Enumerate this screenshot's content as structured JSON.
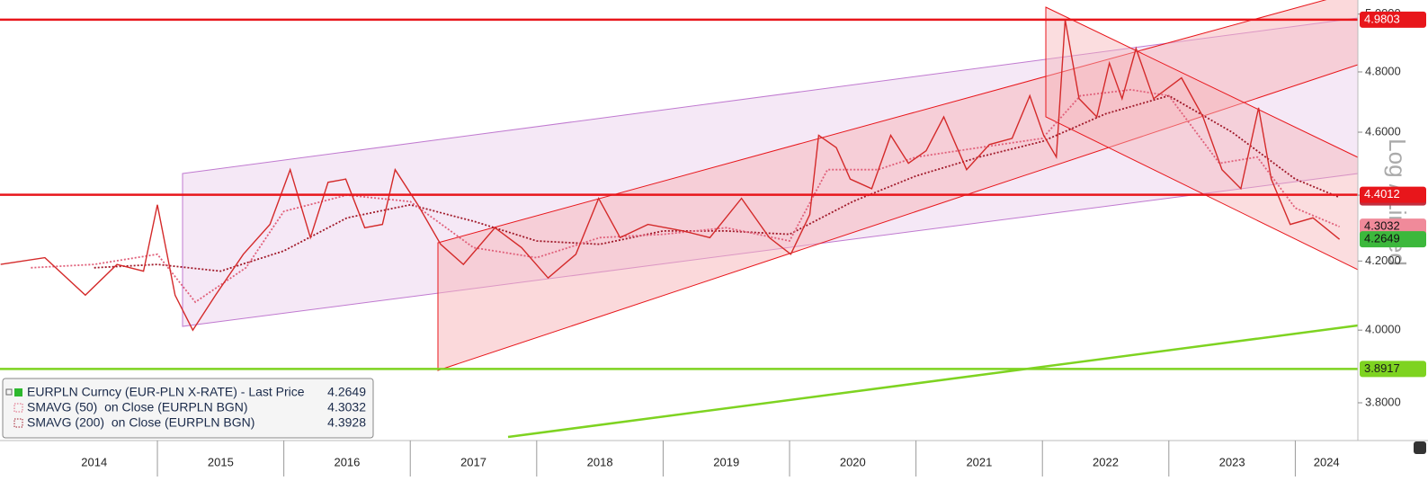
{
  "chart_data": {
    "type": "line",
    "log_scale": true,
    "y_label": "Log / Linked",
    "xlim": [
      2013.755,
      2024.495
    ],
    "ylim": [
      3.7,
      5.05
    ],
    "xticks": [
      2015,
      2016,
      2017,
      2018,
      2019,
      2020,
      2021,
      2022,
      2023,
      2024
    ],
    "year_labels": [
      "2014",
      "2015",
      "2016",
      "2017",
      "2018",
      "2019",
      "2020",
      "2021",
      "2022",
      "2023",
      "2024"
    ],
    "yticks": [
      {
        "value": 3.8,
        "label": "3.8000"
      },
      {
        "value": 4.0,
        "label": "4.0000"
      },
      {
        "value": 4.2,
        "label": "4.2000"
      },
      {
        "value": 4.4,
        "label": "4.4000"
      },
      {
        "value": 4.6,
        "label": "4.6000"
      },
      {
        "value": 4.8,
        "label": "4.8000"
      },
      {
        "value": 5.0,
        "label": "5.0000"
      }
    ],
    "series": [
      {
        "name": "EURPLN Curncy (EUR-PLN X-RATE) - Last Price",
        "color": "#d42a2a",
        "legend_color": "#2db82d",
        "label_color": "#3cb83c",
        "x": [
          2013.76,
          2014.11,
          2014.43,
          2014.68,
          2014.89,
          2015.0,
          2015.14,
          2015.28,
          2015.46,
          2015.68,
          2015.89,
          2016.05,
          2016.21,
          2016.35,
          2016.49,
          2016.64,
          2016.78,
          2016.88,
          2017.06,
          2017.24,
          2017.42,
          2017.67,
          2017.88,
          2018.09,
          2018.31,
          2018.49,
          2018.66,
          2018.88,
          2019.16,
          2019.37,
          2019.62,
          2019.84,
          2020.01,
          2020.16,
          2020.23,
          2020.37,
          2020.48,
          2020.65,
          2020.8,
          2020.94,
          2021.08,
          2021.22,
          2021.4,
          2021.58,
          2021.76,
          2021.9,
          2022.01,
          2022.11,
          2022.18,
          2022.29,
          2022.43,
          2022.53,
          2022.63,
          2022.74,
          2022.88,
          2023.1,
          2023.27,
          2023.42,
          2023.57,
          2023.71,
          2023.81,
          2023.96,
          2024.14,
          2024.35
        ],
        "values": [
          4.19,
          4.21,
          4.1,
          4.19,
          4.17,
          4.37,
          4.1,
          4.0,
          4.1,
          4.22,
          4.31,
          4.48,
          4.27,
          4.44,
          4.45,
          4.3,
          4.31,
          4.48,
          4.37,
          4.25,
          4.19,
          4.3,
          4.24,
          4.15,
          4.22,
          4.39,
          4.27,
          4.31,
          4.29,
          4.27,
          4.39,
          4.27,
          4.22,
          4.34,
          4.59,
          4.55,
          4.45,
          4.42,
          4.59,
          4.5,
          4.54,
          4.65,
          4.48,
          4.56,
          4.58,
          4.72,
          4.59,
          4.52,
          4.98,
          4.71,
          4.65,
          4.83,
          4.71,
          4.88,
          4.71,
          4.78,
          4.65,
          4.48,
          4.42,
          4.68,
          4.45,
          4.31,
          4.33,
          4.2649
        ]
      },
      {
        "name": "SMAVG (50)  on Close (EURPLN BGN)",
        "color": "#e0607a",
        "label_color": "#f08a9a",
        "x": [
          2014.0,
          2014.5,
          2015.0,
          2015.3,
          2015.7,
          2016.0,
          2016.5,
          2017.0,
          2017.5,
          2018.0,
          2018.5,
          2019.0,
          2019.5,
          2020.0,
          2020.3,
          2020.7,
          2021.0,
          2021.5,
          2022.0,
          2022.3,
          2022.7,
          2023.0,
          2023.4,
          2023.7,
          2024.0,
          2024.35
        ],
        "values": [
          4.18,
          4.19,
          4.22,
          4.08,
          4.18,
          4.35,
          4.4,
          4.38,
          4.24,
          4.21,
          4.27,
          4.28,
          4.3,
          4.26,
          4.48,
          4.48,
          4.52,
          4.55,
          4.58,
          4.72,
          4.74,
          4.72,
          4.5,
          4.52,
          4.36,
          4.3032
        ]
      },
      {
        "name": "SMAVG (200)  on Close (EURPLN BGN)",
        "color": "#a01828",
        "label_color": "#c03040",
        "x": [
          2014.5,
          2015.0,
          2015.5,
          2016.0,
          2016.5,
          2017.0,
          2017.5,
          2018.0,
          2018.5,
          2019.0,
          2019.5,
          2020.0,
          2020.5,
          2021.0,
          2021.5,
          2022.0,
          2022.5,
          2023.0,
          2023.5,
          2024.0,
          2024.35
        ],
        "values": [
          4.18,
          4.19,
          4.17,
          4.23,
          4.33,
          4.37,
          4.32,
          4.26,
          4.25,
          4.29,
          4.29,
          4.28,
          4.38,
          4.46,
          4.52,
          4.57,
          4.66,
          4.72,
          4.6,
          4.45,
          4.3928
        ]
      }
    ],
    "hlines": [
      {
        "value": 4.9803,
        "color": "#e8161b",
        "text_color": "#ffffff"
      },
      {
        "value": 4.4012,
        "color": "#e8161b",
        "text_color": "#ffffff"
      },
      {
        "value": 3.8917,
        "color": "#7ed321",
        "text_color": "#1a1a1a"
      }
    ]
  }
}
